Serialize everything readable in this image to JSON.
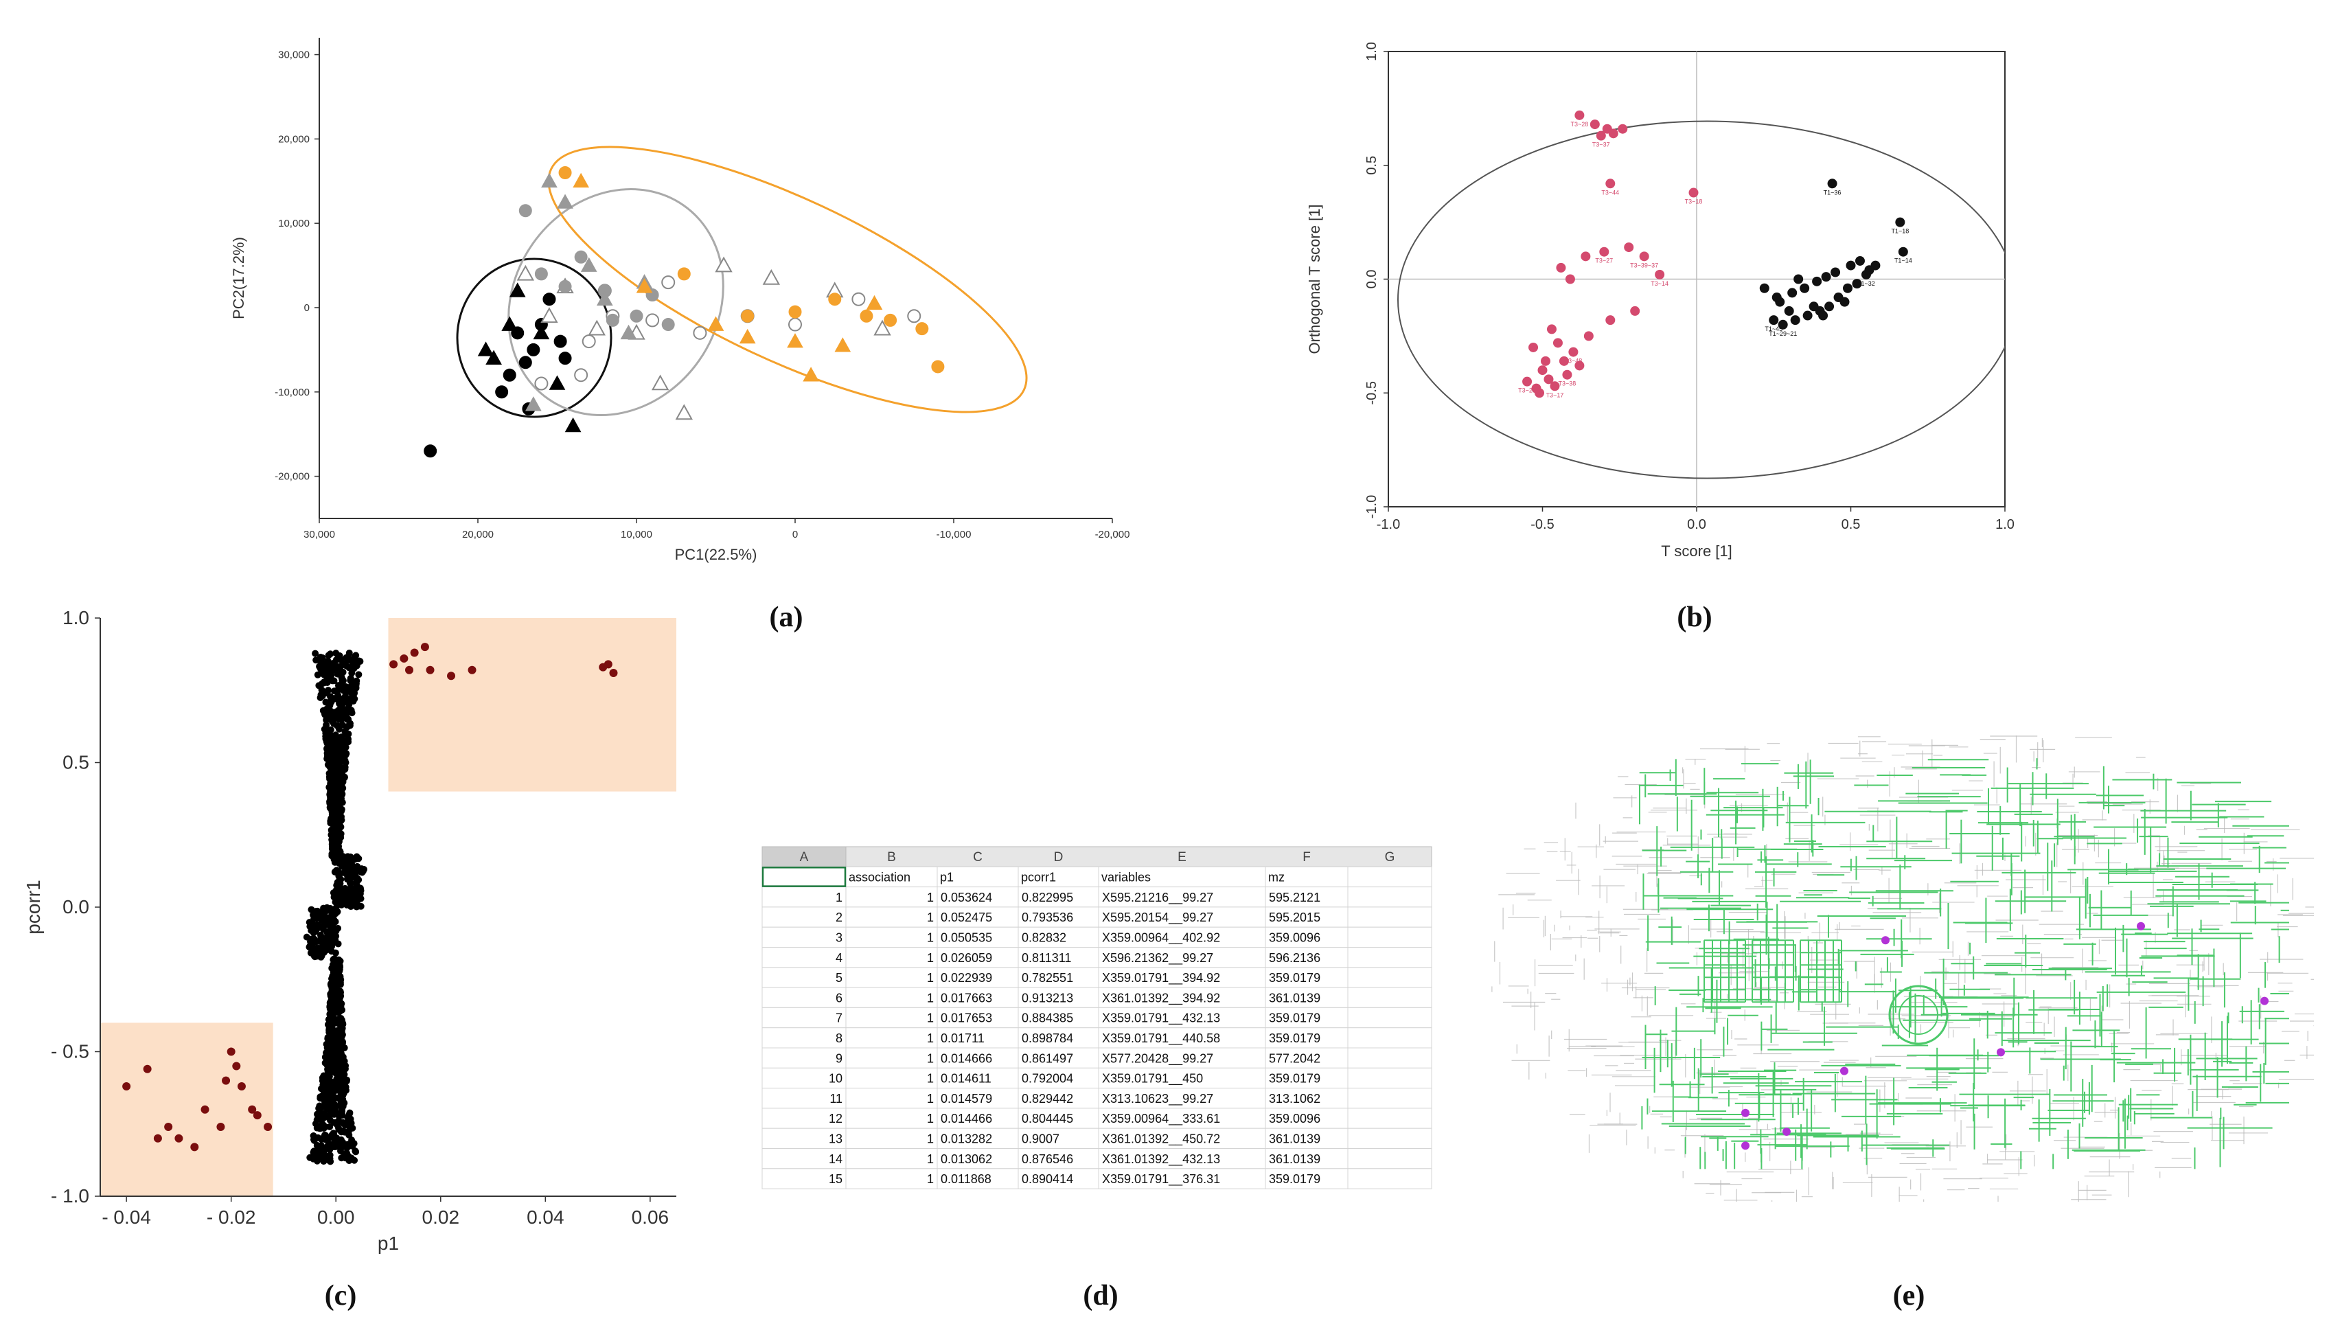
{
  "captions": [
    "(a)",
    "(b)",
    "(c)",
    "(d)",
    "(e)"
  ],
  "chart_data": [
    {
      "type": "scatter",
      "panel": "a",
      "xlabel": "PC1(22.5%)",
      "ylabel": "PC2(17.2%)",
      "xlim": [
        30000,
        -20000
      ],
      "ylim": [
        -25000,
        32000
      ],
      "x_ticks": [
        "30,000",
        "20,000",
        "10,000",
        "0",
        "-10,000",
        "-20,000"
      ],
      "y_ticks": [
        "30,000",
        "20,000",
        "10,000",
        "0",
        "-10,000",
        "-20,000"
      ],
      "series": [
        {
          "color": "#000000",
          "shape": "circle-filled",
          "x": [
            23000,
            18500,
            17000,
            16500,
            16000,
            15500,
            14800,
            14500,
            18000,
            16800,
            17500
          ],
          "y": [
            -17000,
            -10000,
            -6500,
            -5000,
            -2000,
            1000,
            -4000,
            -6000,
            -8000,
            -12000,
            -3000
          ]
        },
        {
          "color": "#000000",
          "shape": "triangle-filled",
          "x": [
            19500,
            18000,
            16000,
            15000,
            14000,
            17500,
            19000
          ],
          "y": [
            -5000,
            -2000,
            -3000,
            -9000,
            -14000,
            2000,
            -6000
          ]
        },
        {
          "color": "#ffffff",
          "shape": "circle-open",
          "x": [
            16000,
            13500,
            13000,
            12000,
            11500,
            9000,
            8000,
            6000,
            3000,
            0,
            -4000,
            -7500
          ],
          "y": [
            -9000,
            -8000,
            -4000,
            2000,
            -1000,
            -1500,
            3000,
            -3000,
            -1000,
            -2000,
            1000,
            -1000
          ]
        },
        {
          "color": "#ffffff",
          "shape": "triangle-open",
          "x": [
            17000,
            15500,
            14500,
            12500,
            10000,
            8500,
            7000,
            4500,
            1500,
            -2500,
            -5500
          ],
          "y": [
            4000,
            -1000,
            2500,
            -2500,
            -3000,
            -9000,
            -12500,
            5000,
            3500,
            2000,
            -2500
          ]
        },
        {
          "color": "#999999",
          "shape": "circle-filled",
          "x": [
            17000,
            16000,
            14500,
            13500,
            12000,
            11500,
            10000,
            9000,
            8000
          ],
          "y": [
            11500,
            4000,
            2500,
            6000,
            2000,
            -1500,
            -1000,
            1500,
            -2000
          ]
        },
        {
          "color": "#999999",
          "shape": "triangle-filled",
          "x": [
            15500,
            14500,
            13000,
            12000,
            10500,
            9500,
            16500
          ],
          "y": [
            15000,
            12500,
            5000,
            1000,
            -3000,
            3000,
            -11500
          ]
        },
        {
          "color": "#F4A12C",
          "shape": "circle-filled",
          "x": [
            14500,
            7000,
            3000,
            0,
            -2500,
            -4500,
            -6000,
            -8000,
            -9000
          ],
          "y": [
            16000,
            4000,
            -1000,
            -500,
            1000,
            -1000,
            -1500,
            -2500,
            -7000
          ]
        },
        {
          "color": "#F4A12C",
          "shape": "triangle-filled",
          "x": [
            13500,
            9500,
            5000,
            3000,
            0,
            -3000,
            -5000,
            -1000
          ],
          "y": [
            15000,
            2500,
            -2000,
            -3500,
            -4000,
            -4500,
            500,
            -8000
          ]
        }
      ]
    },
    {
      "type": "scatter",
      "panel": "b",
      "xlabel": "T score [1]",
      "ylabel": "Orthogonal T score [1]",
      "xlim": [
        -1.0,
        1.0
      ],
      "ylim": [
        -1.0,
        1.0
      ],
      "x_ticks": [
        "-1.0",
        "-0.5",
        "0.0",
        "0.5",
        "1.0"
      ],
      "y_ticks": [
        "1.0",
        "0.5",
        "0.0",
        "-0.5",
        "-1.0"
      ],
      "series": [
        {
          "color": "#D44A6E",
          "x": [
            -0.38,
            -0.33,
            -0.31,
            -0.29,
            -0.27,
            -0.24,
            -0.28,
            -0.01,
            -0.3,
            -0.22,
            -0.17,
            -0.12,
            -0.2,
            -0.28,
            -0.35,
            -0.4,
            -0.45,
            -0.43,
            -0.38,
            -0.42,
            -0.48,
            -0.5,
            -0.46,
            -0.52,
            -0.55,
            -0.51,
            -0.49,
            -0.47,
            -0.53,
            -0.44,
            -0.36,
            -0.41
          ],
          "y": [
            0.72,
            0.68,
            0.63,
            0.66,
            0.64,
            0.66,
            0.42,
            0.38,
            0.12,
            0.14,
            0.1,
            0.02,
            -0.14,
            -0.18,
            -0.25,
            -0.32,
            -0.28,
            -0.36,
            -0.38,
            -0.42,
            -0.44,
            -0.4,
            -0.47,
            -0.48,
            -0.45,
            -0.5,
            -0.36,
            -0.22,
            -0.3,
            0.05,
            0.1,
            0.0
          ],
          "labels": [
            "T3~28",
            "",
            "T3~37",
            "",
            "",
            "",
            "T3~44",
            "T3~18",
            "T3~27",
            "",
            "T3~39~37",
            "T3~14",
            "",
            "",
            "",
            "T3~48",
            "",
            "",
            "",
            "T3~38",
            "",
            "",
            "T3~17",
            "",
            "T3~23",
            "",
            "",
            "",
            "",
            "",
            "",
            ""
          ]
        },
        {
          "color": "#111111",
          "x": [
            0.44,
            0.66,
            0.67,
            0.58,
            0.55,
            0.52,
            0.49,
            0.46,
            0.43,
            0.4,
            0.36,
            0.32,
            0.28,
            0.25,
            0.27,
            0.31,
            0.35,
            0.39,
            0.42,
            0.45,
            0.5,
            0.53,
            0.56,
            0.48,
            0.38,
            0.3,
            0.26,
            0.22,
            0.33,
            0.41
          ],
          "y": [
            0.42,
            0.25,
            0.12,
            0.06,
            0.02,
            -0.02,
            -0.04,
            -0.08,
            -0.12,
            -0.14,
            -0.16,
            -0.18,
            -0.2,
            -0.18,
            -0.1,
            -0.06,
            -0.04,
            -0.01,
            0.01,
            0.03,
            0.06,
            0.08,
            0.04,
            -0.1,
            -0.12,
            -0.14,
            -0.08,
            -0.04,
            0.0,
            -0.16
          ],
          "labels": [
            "T1~36",
            "T1~18",
            "T1~14",
            "",
            "T1~32",
            "",
            "",
            "",
            "",
            "",
            "",
            "",
            "T1~29~21",
            "T1~45",
            "",
            "",
            "",
            "",
            "",
            "",
            "",
            "",
            "",
            "",
            "",
            "",
            "",
            "",
            "",
            ""
          ]
        }
      ]
    },
    {
      "type": "scatter",
      "panel": "c",
      "xlabel": "p1",
      "ylabel": "pcorr1",
      "xlim": [
        -0.045,
        0.065
      ],
      "ylim": [
        -1.0,
        1.0
      ],
      "x_ticks": [
        "- 0.04",
        "- 0.02",
        "0.00",
        "0.02",
        "0.04",
        "0.06"
      ],
      "y_ticks": [
        "1.0",
        "0.5",
        "0.0",
        "- 0.5",
        "- 1.0"
      ],
      "highlight_boxes": [
        {
          "x": [
            -0.045,
            -0.012
          ],
          "y": [
            -1.0,
            -0.4
          ],
          "color": "#FCE0C8"
        },
        {
          "x": [
            0.01,
            0.065
          ],
          "y": [
            0.4,
            1.0
          ],
          "color": "#FCE0C8"
        }
      ],
      "highlighted_points": {
        "color": "#7A0E0E",
        "x": [
          -0.04,
          -0.036,
          -0.032,
          -0.03,
          -0.027,
          -0.025,
          -0.022,
          -0.02,
          -0.018,
          -0.016,
          -0.015,
          -0.013,
          -0.034,
          -0.021,
          -0.019,
          0.011,
          0.013,
          0.015,
          0.017,
          0.018,
          0.022,
          0.026,
          0.051,
          0.053,
          0.052,
          0.014
        ],
        "y": [
          -0.62,
          -0.56,
          -0.76,
          -0.8,
          -0.83,
          -0.7,
          -0.76,
          -0.5,
          -0.62,
          -0.7,
          -0.72,
          -0.76,
          -0.8,
          -0.6,
          -0.55,
          0.84,
          0.86,
          0.88,
          0.9,
          0.82,
          0.8,
          0.82,
          0.83,
          0.81,
          0.84,
          0.82
        ]
      },
      "bulk_points": {
        "color": "#000000",
        "description": "dense S-shaped cloud near p1 = 0"
      }
    },
    {
      "type": "table",
      "panel": "d",
      "column_letters": [
        "A",
        "B",
        "C",
        "D",
        "E",
        "F",
        "G"
      ],
      "columns": [
        "",
        "association",
        "p1",
        "pcorr1",
        "variables",
        "mz",
        ""
      ],
      "rows": [
        [
          "1",
          "1",
          "0.053624",
          "0.822995",
          "X595.21216__99.27",
          "595.2121",
          ""
        ],
        [
          "2",
          "1",
          "0.052475",
          "0.793536",
          "X595.20154__99.27",
          "595.2015",
          ""
        ],
        [
          "3",
          "1",
          "0.050535",
          "0.82832",
          "X359.00964__402.92",
          "359.0096",
          ""
        ],
        [
          "4",
          "1",
          "0.026059",
          "0.811311",
          "X596.21362__99.27",
          "596.2136",
          ""
        ],
        [
          "5",
          "1",
          "0.022939",
          "0.782551",
          "X359.01791__394.92",
          "359.0179",
          ""
        ],
        [
          "6",
          "1",
          "0.017663",
          "0.913213",
          "X361.01392__394.92",
          "361.0139",
          ""
        ],
        [
          "7",
          "1",
          "0.017653",
          "0.884385",
          "X359.01791__432.13",
          "359.0179",
          ""
        ],
        [
          "8",
          "1",
          "0.01711",
          "0.898784",
          "X359.01791__440.58",
          "359.0179",
          ""
        ],
        [
          "9",
          "1",
          "0.014666",
          "0.861497",
          "X577.20428__99.27",
          "577.2042",
          ""
        ],
        [
          "10",
          "1",
          "0.014611",
          "0.792004",
          "X359.01791__450",
          "359.0179",
          ""
        ],
        [
          "11",
          "1",
          "0.014579",
          "0.829442",
          "X313.10623__99.27",
          "313.1062",
          ""
        ],
        [
          "12",
          "1",
          "0.014466",
          "0.804445",
          "X359.00964__333.61",
          "359.0096",
          ""
        ],
        [
          "13",
          "1",
          "0.013282",
          "0.9007",
          "X361.01392__450.72",
          "361.0139",
          ""
        ],
        [
          "14",
          "1",
          "0.013062",
          "0.876546",
          "X361.01392__432.13",
          "361.0139",
          ""
        ],
        [
          "15",
          "1",
          "0.011868",
          "0.890414",
          "X359.01791__376.31",
          "359.0179",
          ""
        ]
      ]
    },
    {
      "type": "other",
      "panel": "e",
      "network_color": "#4CC96A",
      "background_color": "#BBBBBB",
      "highlight_color": "#B232D6",
      "highlight_nodes": [
        [
          0.48,
          0.44
        ],
        [
          0.79,
          0.41
        ],
        [
          0.94,
          0.57
        ],
        [
          0.62,
          0.68
        ],
        [
          0.43,
          0.72
        ],
        [
          0.31,
          0.81
        ],
        [
          0.36,
          0.85
        ],
        [
          0.31,
          0.88
        ]
      ]
    }
  ]
}
